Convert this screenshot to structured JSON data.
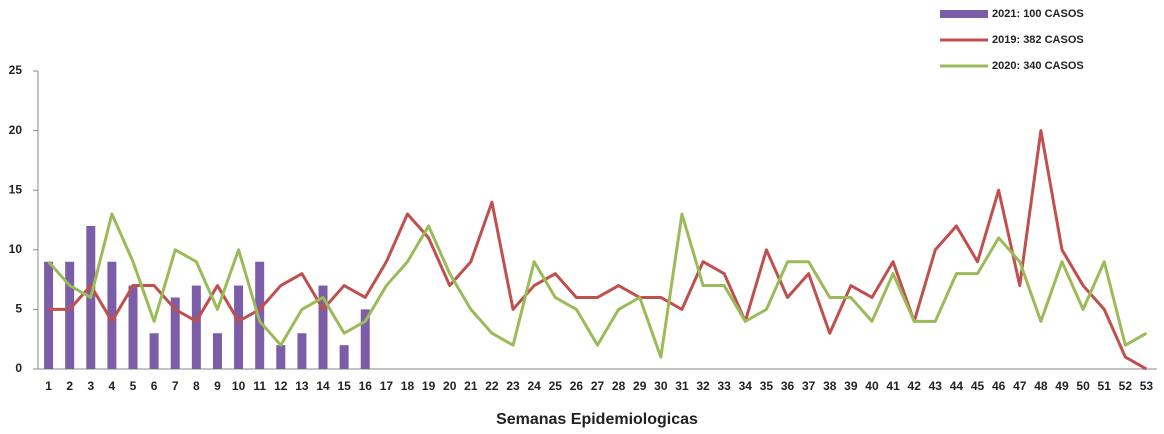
{
  "chart_data": {
    "type": "bar",
    "x_label": "Semanas Epidemiologicas",
    "categories": [
      "1",
      "2",
      "3",
      "4",
      "5",
      "6",
      "7",
      "8",
      "9",
      "10",
      "11",
      "12",
      "13",
      "14",
      "15",
      "16",
      "17",
      "18",
      "19",
      "20",
      "21",
      "22",
      "23",
      "24",
      "25",
      "26",
      "27",
      "28",
      "29",
      "30",
      "31",
      "32",
      "33",
      "34",
      "35",
      "36",
      "37",
      "38",
      "39",
      "40",
      "41",
      "42",
      "43",
      "44",
      "45",
      "46",
      "47",
      "48",
      "49",
      "50",
      "51",
      "52",
      "53"
    ],
    "series": [
      {
        "name": "2021:  100 CASOS",
        "type": "bar",
        "color": "#7b5ea7",
        "values": [
          9,
          9,
          12,
          9,
          7,
          3,
          6,
          7,
          3,
          7,
          9,
          2,
          3,
          7,
          2,
          5,
          null,
          null,
          null,
          null,
          null,
          null,
          null,
          null,
          null,
          null,
          null,
          null,
          null,
          null,
          null,
          null,
          null,
          null,
          null,
          null,
          null,
          null,
          null,
          null,
          null,
          null,
          null,
          null,
          null,
          null,
          null,
          null,
          null,
          null,
          null,
          null,
          null
        ]
      },
      {
        "name": "2019: 382 CASOS",
        "type": "line",
        "color": "#c0504d",
        "values": [
          5,
          5,
          7,
          4,
          7,
          7,
          5,
          4,
          7,
          4,
          5,
          7,
          8,
          5,
          7,
          6,
          9,
          13,
          11,
          7,
          9,
          14,
          5,
          7,
          8,
          6,
          6,
          7,
          6,
          6,
          5,
          9,
          8,
          4,
          10,
          6,
          8,
          3,
          7,
          6,
          9,
          4,
          10,
          12,
          9,
          15,
          7,
          20,
          10,
          7,
          5,
          1,
          0
        ]
      },
      {
        "name": "2020: 340 CASOS",
        "type": "line",
        "color": "#9bbb59",
        "values": [
          9,
          7,
          6,
          13,
          9,
          4,
          10,
          9,
          5,
          10,
          4,
          2,
          5,
          6,
          3,
          4,
          7,
          9,
          12,
          8,
          5,
          3,
          2,
          9,
          6,
          5,
          2,
          5,
          6,
          1,
          13,
          7,
          7,
          4,
          5,
          9,
          9,
          6,
          6,
          4,
          8,
          4,
          4,
          8,
          8,
          11,
          9,
          4,
          9,
          5,
          9,
          2,
          3
        ]
      }
    ],
    "ylim": [
      0,
      25
    ],
    "yticks": [
      0,
      5,
      10,
      15,
      20,
      25
    ],
    "legend": "top-right"
  }
}
